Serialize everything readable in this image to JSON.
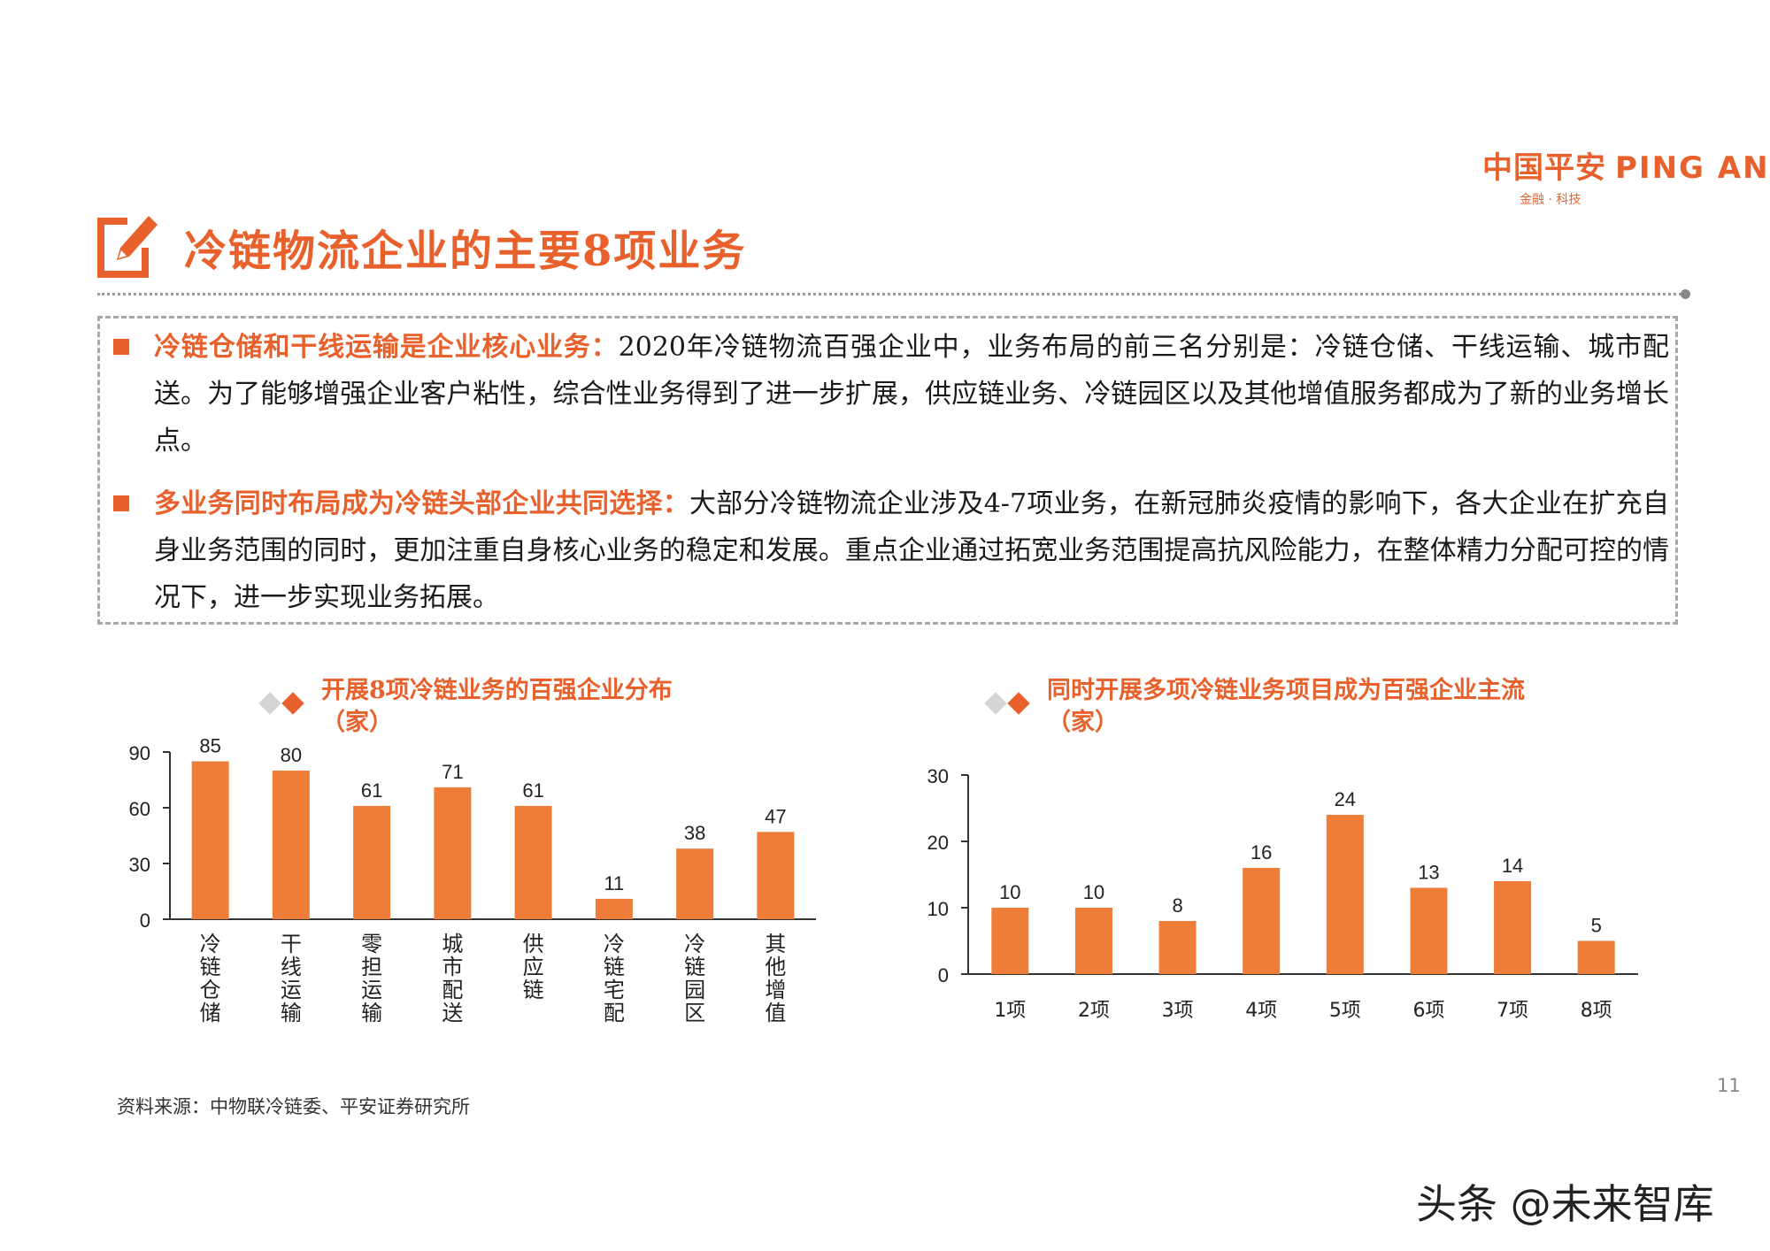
{
  "logo": {
    "main_cn": "中国平安",
    "main_en": "PING AN",
    "sub": "金融 · 科技"
  },
  "page_title": "冷链物流企业的主要8项业务",
  "paragraphs": [
    {
      "highlight": "冷链仓储和干线运输是企业核心业务：",
      "body": "2020年冷链物流百强企业中，业务布局的前三名分别是：冷链仓储、干线运输、城市配送。为了能够增强企业客户粘性，综合性业务得到了进一步扩展，供应链业务、冷链园区以及其他增值服务都成为了新的业务增长点。"
    },
    {
      "highlight": "多业务同时布局成为冷链头部企业共同选择：",
      "body": "大部分冷链物流企业涉及4-7项业务，在新冠肺炎疫情的影响下，各大企业在扩充自身业务范围的同时，更加注重自身核心业务的稳定和发展。重点企业通过拓宽业务范围提高抗风险能力，在整体精力分配可控的情况下，进一步实现业务拓展。"
    }
  ],
  "colors": {
    "accent": "#e8612c",
    "bar": "#ee7d3a",
    "axis": "#333333"
  },
  "chart_data": [
    {
      "type": "bar",
      "title": "开展8项冷链业务的百强企业分布",
      "title_unit": "（家）",
      "categories": [
        "冷链仓储",
        "干线运输",
        "零担运输",
        "城市配送",
        "供应链",
        "冷链宅配",
        "冷链园区",
        "其他增值"
      ],
      "values": [
        85,
        80,
        61,
        71,
        61,
        11,
        38,
        47
      ],
      "yticks": [
        0,
        30,
        60,
        90
      ],
      "ylim": [
        0,
        90
      ],
      "xlabel": "",
      "ylabel": "",
      "grid": false
    },
    {
      "type": "bar",
      "title": "同时开展多项冷链业务项目成为百强企业主流",
      "title_unit": "（家）",
      "categories": [
        "1项",
        "2项",
        "3项",
        "4项",
        "5项",
        "6项",
        "7项",
        "8项"
      ],
      "values": [
        10,
        10,
        8,
        16,
        24,
        13,
        14,
        5
      ],
      "yticks": [
        0,
        10,
        20,
        30
      ],
      "ylim": [
        0,
        30
      ],
      "xlabel": "",
      "ylabel": "",
      "grid": false
    }
  ],
  "source": "资料来源：中物联冷链委、平安证券研究所",
  "page_number": "11",
  "watermark": "头条 @未来智库"
}
